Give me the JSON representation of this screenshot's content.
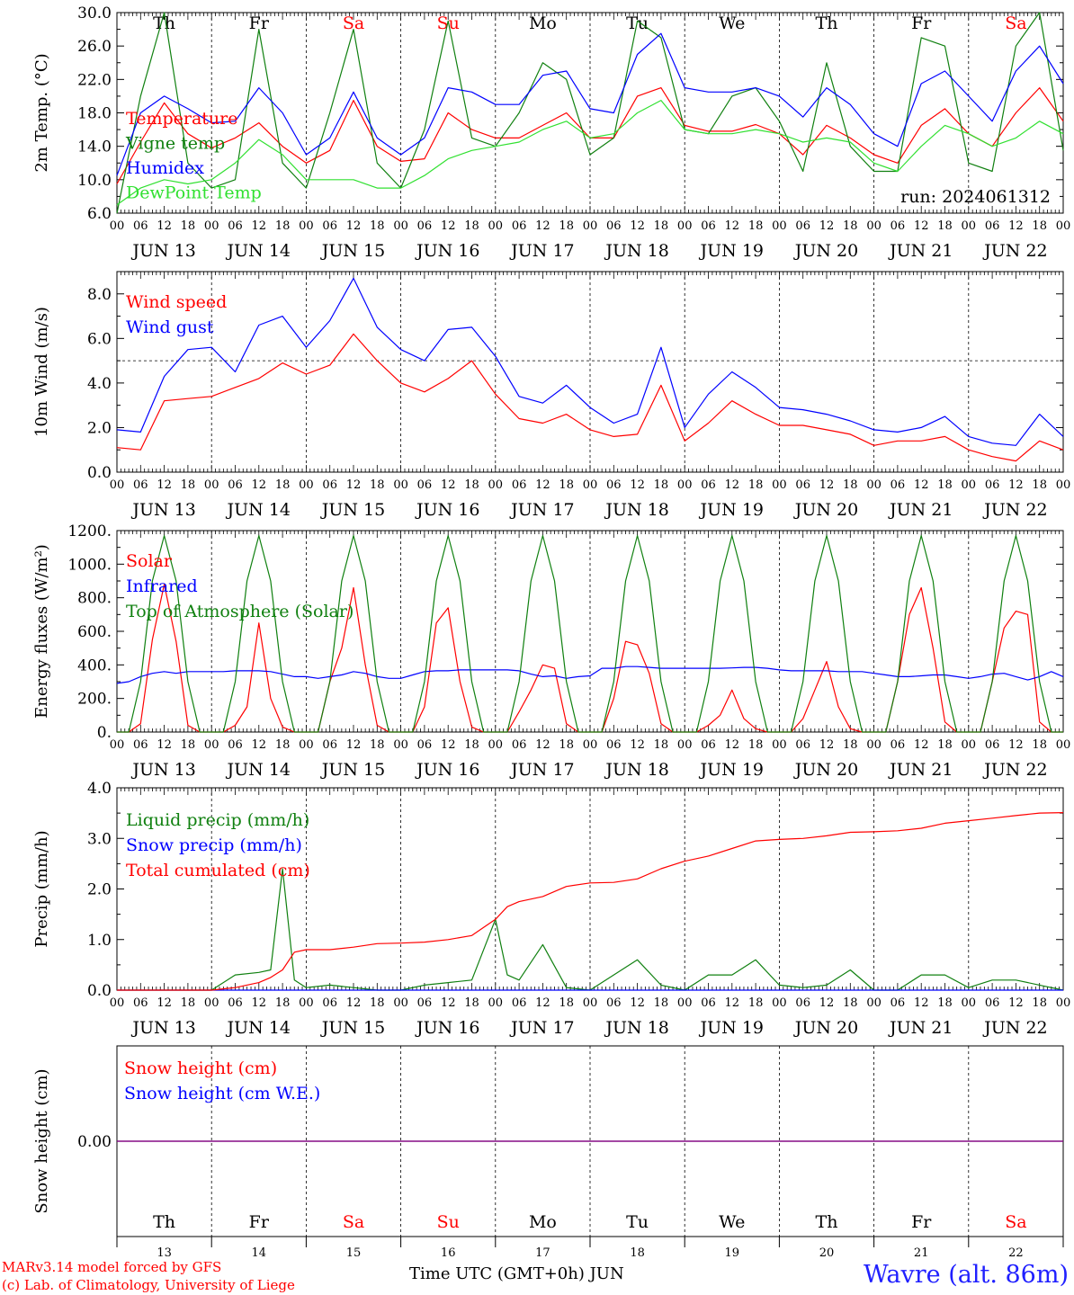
{
  "footer": {
    "credit_line1": "MARv3.14 model forced by GFS",
    "credit_line2": "(c) Lab. of Climatology, University of Liege",
    "x_title": "Time UTC (GMT+0h) JUN",
    "location": "Wavre (alt. 86m)"
  },
  "colors": {
    "red": "#ff0000",
    "green": "#108010",
    "blue": "#0000ff",
    "lightgreen": "#30e030",
    "purple": "#800080"
  },
  "chart_data": [
    {
      "type": "line",
      "ylabel": "2m Temp. (°C)",
      "ylim": [
        6,
        30
      ],
      "yticks": [
        6,
        10,
        14,
        18,
        22,
        26,
        30
      ],
      "yticklabels": [
        "6.0",
        "10.0",
        "14.0",
        "18.0",
        "22.0",
        "26.0",
        "30.0"
      ],
      "days": [
        "JUN 13",
        "JUN 14",
        "JUN 15",
        "JUN 16",
        "JUN 17",
        "JUN 18",
        "JUN 19",
        "JUN 20",
        "JUN 21",
        "JUN 22"
      ],
      "weekdays": [
        "Th",
        "Fr",
        "Sa",
        "Su",
        "Mo",
        "Tu",
        "We",
        "Th",
        "Fr",
        "Sa"
      ],
      "weekday_colors": [
        "#000000",
        "#000000",
        "#ff0000",
        "#ff0000",
        "#000000",
        "#000000",
        "#000000",
        "#000000",
        "#000000",
        "#ff0000"
      ],
      "hour_ticks": [
        "00",
        "06",
        "12",
        "18"
      ],
      "annotation": "run: 2024061312",
      "x_hours": [
        0,
        6,
        12,
        18,
        24,
        30,
        36,
        42,
        48,
        54,
        60,
        66,
        72,
        78,
        84,
        90,
        96,
        102,
        108,
        114,
        120,
        126,
        132,
        138,
        144,
        150,
        156,
        162,
        168,
        174,
        180,
        186,
        192,
        198,
        204,
        210,
        216,
        222,
        228,
        234,
        240
      ],
      "series": [
        {
          "name": "Temperature",
          "color": "#ff0000",
          "values": [
            9.5,
            14.5,
            19.2,
            15.5,
            13.8,
            15.0,
            16.8,
            14.0,
            12.0,
            13.5,
            19.5,
            14.0,
            12.2,
            12.5,
            18.0,
            16.0,
            15.0,
            15.0,
            16.5,
            18.0,
            15.0,
            15.0,
            20.0,
            21.0,
            16.5,
            15.8,
            15.8,
            16.6,
            15.5,
            13.0,
            16.5,
            15.0,
            13.0,
            12.0,
            16.5,
            18.5,
            15.5,
            14.0,
            18.0,
            21.0,
            17.0
          ]
        },
        {
          "name": "Vigne temp",
          "color": "#108010",
          "values": [
            6.0,
            20.0,
            30.0,
            12.0,
            9.0,
            10.0,
            28.0,
            12.0,
            9.0,
            18.0,
            28.0,
            12.0,
            9.0,
            16.0,
            29.0,
            15.0,
            14.0,
            18.0,
            24.0,
            22.0,
            13.0,
            15.0,
            29.0,
            27.0,
            16.0,
            15.5,
            20.0,
            21.0,
            17.0,
            11.0,
            24.0,
            14.0,
            11.0,
            11.0,
            27.0,
            26.0,
            12.0,
            11.0,
            26.0,
            30.0,
            13.5
          ]
        },
        {
          "name": "Humidex",
          "color": "#0000ff",
          "values": [
            10.5,
            18.0,
            20.0,
            18.5,
            16.8,
            17.0,
            21.0,
            18.0,
            13.0,
            15.0,
            20.5,
            15.0,
            13.0,
            15.0,
            21.0,
            20.5,
            19.0,
            19.0,
            22.5,
            23.0,
            18.5,
            18.0,
            25.0,
            27.5,
            21.0,
            20.5,
            20.5,
            21.0,
            20.0,
            17.5,
            21.0,
            19.0,
            15.5,
            14.0,
            21.5,
            23.0,
            20.0,
            17.0,
            23.0,
            26.0,
            21.5
          ]
        },
        {
          "name": "DewPoint Temp",
          "color": "#30e030",
          "values": [
            7.0,
            9.0,
            10.0,
            9.5,
            10.0,
            12.0,
            14.8,
            13.0,
            10.0,
            10.0,
            10.0,
            9.0,
            9.0,
            10.5,
            12.5,
            13.5,
            14.0,
            14.5,
            16.0,
            17.0,
            15.0,
            15.5,
            18.0,
            19.5,
            16.0,
            15.5,
            15.5,
            16.0,
            15.5,
            14.5,
            15.0,
            14.5,
            12.0,
            11.0,
            14.0,
            16.5,
            15.5,
            14.0,
            15.0,
            17.0,
            15.5
          ]
        }
      ]
    },
    {
      "type": "line",
      "ylabel": "10m Wind (m/s)",
      "ylim": [
        0,
        9
      ],
      "yticks": [
        0,
        2,
        4,
        6,
        8
      ],
      "yticklabels": [
        "0.0",
        "2.0",
        "4.0",
        "6.0",
        "8.0"
      ],
      "days": [
        "JUN 13",
        "JUN 14",
        "JUN 15",
        "JUN 16",
        "JUN 17",
        "JUN 18",
        "JUN 19",
        "JUN 20",
        "JUN 21",
        "JUN 22"
      ],
      "hour_ticks": [
        "00",
        "06",
        "12",
        "18"
      ],
      "reference_line": 5.0,
      "x_hours": [
        0,
        6,
        12,
        18,
        24,
        30,
        36,
        42,
        48,
        54,
        60,
        66,
        72,
        78,
        84,
        90,
        96,
        102,
        108,
        114,
        120,
        126,
        132,
        138,
        144,
        150,
        156,
        162,
        168,
        174,
        180,
        186,
        192,
        198,
        204,
        210,
        216,
        222,
        228,
        234,
        240
      ],
      "series": [
        {
          "name": "Wind speed",
          "color": "#ff0000",
          "values": [
            1.1,
            1.0,
            3.2,
            3.3,
            3.4,
            3.8,
            4.2,
            4.9,
            4.4,
            4.8,
            6.2,
            5.0,
            4.0,
            3.6,
            4.2,
            5.0,
            3.5,
            2.4,
            2.2,
            2.6,
            1.9,
            1.6,
            1.7,
            3.9,
            1.4,
            2.2,
            3.2,
            2.6,
            2.1,
            2.1,
            1.9,
            1.7,
            1.2,
            1.4,
            1.4,
            1.6,
            1.0,
            0.7,
            0.5,
            1.4,
            1.0
          ]
        },
        {
          "name": "Wind gust",
          "color": "#0000ff",
          "values": [
            1.9,
            1.8,
            4.3,
            5.5,
            5.6,
            4.5,
            6.6,
            7.0,
            5.6,
            6.8,
            8.7,
            6.5,
            5.5,
            5.0,
            6.4,
            6.5,
            5.2,
            3.4,
            3.1,
            3.9,
            2.9,
            2.2,
            2.6,
            5.6,
            2.0,
            3.5,
            4.5,
            3.8,
            2.9,
            2.8,
            2.6,
            2.3,
            1.9,
            1.8,
            2.0,
            2.5,
            1.6,
            1.3,
            1.2,
            2.6,
            1.6
          ]
        }
      ]
    },
    {
      "type": "line",
      "ylabel": "Energy fluxes (W/m²)",
      "ylim": [
        0,
        1200
      ],
      "yticks": [
        0,
        200,
        400,
        600,
        800,
        1000,
        1200
      ],
      "yticklabels": [
        "0.",
        "200.",
        "400.",
        "600.",
        "800.",
        "1000.",
        "1200."
      ],
      "days": [
        "JUN 13",
        "JUN 14",
        "JUN 15",
        "JUN 16",
        "JUN 17",
        "JUN 18",
        "JUN 19",
        "JUN 20",
        "JUN 21",
        "JUN 22"
      ],
      "hour_ticks": [
        "00",
        "06",
        "12",
        "18"
      ],
      "x_hours": [
        0,
        3,
        6,
        9,
        12,
        15,
        18,
        21,
        24,
        27,
        30,
        33,
        36,
        39,
        42,
        45,
        48,
        51,
        54,
        57,
        60,
        63,
        66,
        69,
        72,
        75,
        78,
        81,
        84,
        87,
        90,
        93,
        96,
        99,
        102,
        105,
        108,
        111,
        114,
        117,
        120,
        123,
        126,
        129,
        132,
        135,
        138,
        141,
        144,
        147,
        150,
        153,
        156,
        159,
        162,
        165,
        168,
        171,
        174,
        177,
        180,
        183,
        186,
        189,
        192,
        195,
        198,
        201,
        204,
        207,
        210,
        213,
        216,
        219,
        222,
        225,
        228,
        231,
        234,
        237,
        240
      ],
      "series": [
        {
          "name": "Solar",
          "color": "#ff0000",
          "values": [
            0,
            0,
            50,
            550,
            880,
            540,
            40,
            0,
            0,
            0,
            40,
            150,
            650,
            200,
            30,
            0,
            0,
            0,
            300,
            500,
            860,
            400,
            40,
            0,
            0,
            0,
            150,
            650,
            740,
            300,
            30,
            0,
            0,
            0,
            120,
            250,
            400,
            380,
            50,
            0,
            0,
            0,
            200,
            540,
            520,
            350,
            50,
            0,
            0,
            0,
            40,
            100,
            250,
            80,
            20,
            0,
            0,
            0,
            80,
            250,
            420,
            150,
            20,
            0,
            0,
            0,
            300,
            700,
            860,
            500,
            60,
            0,
            0,
            0,
            300,
            620,
            720,
            700,
            60,
            0,
            0
          ]
        },
        {
          "name": "Infrared",
          "color": "#0000ff",
          "values": [
            290,
            300,
            330,
            350,
            360,
            350,
            360,
            360,
            360,
            360,
            365,
            365,
            365,
            360,
            345,
            330,
            330,
            320,
            330,
            340,
            360,
            350,
            330,
            320,
            320,
            340,
            360,
            365,
            365,
            370,
            370,
            370,
            370,
            370,
            365,
            345,
            330,
            335,
            320,
            330,
            335,
            380,
            380,
            390,
            390,
            385,
            380,
            380,
            380,
            380,
            380,
            380,
            382,
            385,
            385,
            380,
            370,
            365,
            365,
            365,
            365,
            360,
            360,
            360,
            350,
            340,
            330,
            330,
            335,
            340,
            340,
            330,
            320,
            330,
            345,
            350,
            330,
            310,
            330,
            360,
            330
          ]
        },
        {
          "name": "Top of Atmosphere (Solar)",
          "color": "#108010",
          "values": [
            0,
            0,
            300,
            900,
            1170,
            900,
            300,
            0,
            0,
            0,
            300,
            900,
            1170,
            900,
            300,
            0,
            0,
            0,
            300,
            900,
            1170,
            900,
            300,
            0,
            0,
            0,
            300,
            900,
            1170,
            900,
            300,
            0,
            0,
            0,
            300,
            900,
            1170,
            900,
            300,
            0,
            0,
            0,
            300,
            900,
            1170,
            900,
            300,
            0,
            0,
            0,
            300,
            900,
            1170,
            900,
            300,
            0,
            0,
            0,
            300,
            900,
            1170,
            900,
            300,
            0,
            0,
            0,
            300,
            900,
            1170,
            900,
            300,
            0,
            0,
            0,
            300,
            900,
            1170,
            900,
            300,
            0,
            0
          ]
        }
      ]
    },
    {
      "type": "line",
      "ylabel": "Precip (mm/h)",
      "ylim": [
        0,
        4
      ],
      "yticks": [
        0,
        1,
        2,
        3,
        4
      ],
      "yticklabels": [
        "0.0",
        "1.0",
        "2.0",
        "3.0",
        "4.0"
      ],
      "days": [
        "JUN 13",
        "JUN 14",
        "JUN 15",
        "JUN 16",
        "JUN 17",
        "JUN 18",
        "JUN 19",
        "JUN 20",
        "JUN 21",
        "JUN 22"
      ],
      "hour_ticks": [
        "00",
        "06",
        "12",
        "18"
      ],
      "x_hours": [
        0,
        6,
        12,
        18,
        24,
        30,
        36,
        39,
        42,
        45,
        48,
        54,
        60,
        66,
        72,
        78,
        84,
        90,
        96,
        99,
        102,
        108,
        114,
        120,
        126,
        132,
        138,
        144,
        150,
        156,
        162,
        168,
        174,
        180,
        186,
        192,
        198,
        204,
        210,
        216,
        222,
        228,
        234,
        240
      ],
      "series": [
        {
          "name": "Liquid precip (mm/h)",
          "color": "#108010",
          "values": [
            0.0,
            0.0,
            0.0,
            0.0,
            0.0,
            0.3,
            0.35,
            0.4,
            2.4,
            0.2,
            0.05,
            0.1,
            0.05,
            0.0,
            0.0,
            0.1,
            0.15,
            0.2,
            1.4,
            0.3,
            0.2,
            0.9,
            0.05,
            0.0,
            0.3,
            0.6,
            0.1,
            0.0,
            0.3,
            0.3,
            0.6,
            0.1,
            0.05,
            0.1,
            0.4,
            0.0,
            0.0,
            0.3,
            0.3,
            0.05,
            0.2,
            0.2,
            0.1,
            0.0
          ]
        },
        {
          "name": "Snow precip (mm/h)",
          "color": "#0000ff",
          "values": [
            0.0,
            0.0,
            0.0,
            0.0,
            0.0,
            0.0,
            0.0,
            0.0,
            0.0,
            0.0,
            0.0,
            0.0,
            0.0,
            0.0,
            0.0,
            0.0,
            0.0,
            0.0,
            0.0,
            0.0,
            0.0,
            0.0,
            0.0,
            0.0,
            0.0,
            0.0,
            0.0,
            0.0,
            0.0,
            0.0,
            0.0,
            0.0,
            0.0,
            0.0,
            0.0,
            0.0,
            0.0,
            0.0,
            0.0,
            0.0,
            0.0,
            0.0,
            0.0,
            0.0
          ]
        },
        {
          "name": "Total cumulated (cm)",
          "color": "#ff0000",
          "values": [
            0.0,
            0.0,
            0.0,
            0.0,
            0.0,
            0.05,
            0.15,
            0.25,
            0.4,
            0.75,
            0.8,
            0.8,
            0.85,
            0.92,
            0.93,
            0.95,
            1.0,
            1.08,
            1.4,
            1.65,
            1.75,
            1.85,
            2.05,
            2.12,
            2.13,
            2.2,
            2.4,
            2.55,
            2.65,
            2.8,
            2.95,
            2.98,
            3.0,
            3.05,
            3.12,
            3.13,
            3.15,
            3.2,
            3.3,
            3.35,
            3.4,
            3.45,
            3.5,
            3.51
          ]
        }
      ]
    },
    {
      "type": "line",
      "ylabel": "Snow height (cm)",
      "ylim": [
        -1,
        1
      ],
      "yticks": [
        0
      ],
      "yticklabels": [
        "0.00"
      ],
      "days": [
        "13",
        "14",
        "15",
        "16",
        "17",
        "18",
        "19",
        "20",
        "21",
        "22"
      ],
      "weekdays": [
        "Th",
        "Fr",
        "Sa",
        "Su",
        "Mo",
        "Tu",
        "We",
        "Th",
        "Fr",
        "Sa"
      ],
      "weekday_colors": [
        "#000000",
        "#000000",
        "#ff0000",
        "#ff0000",
        "#000000",
        "#000000",
        "#000000",
        "#000000",
        "#000000",
        "#ff0000"
      ],
      "x_hours": [
        0,
        240
      ],
      "series": [
        {
          "name": "Snow height (cm)",
          "color": "#ff0000",
          "values": [
            0,
            0
          ]
        },
        {
          "name": "Snow height (cm W.E.)",
          "color": "#0000ff",
          "values": [
            0,
            0
          ]
        }
      ]
    }
  ]
}
